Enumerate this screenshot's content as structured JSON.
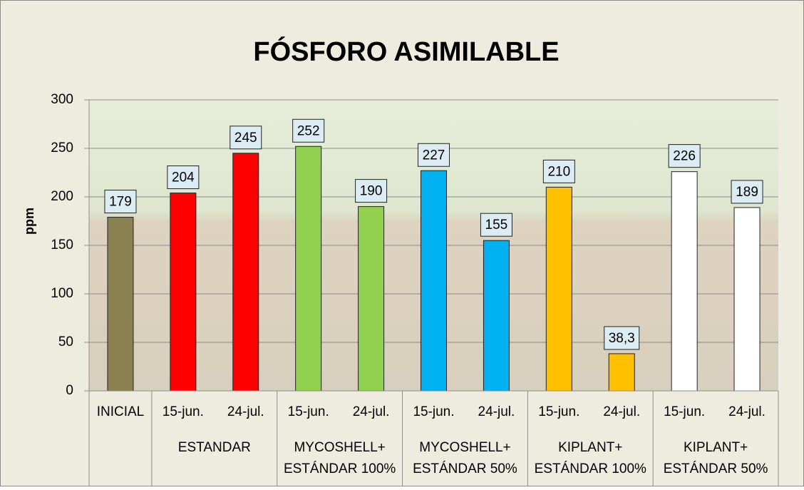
{
  "chart_data": {
    "type": "bar",
    "title": "FÓSFORO ASIMILABLE",
    "y_label": "ppm",
    "ylim": [
      0,
      300
    ],
    "yticks": [
      0,
      50,
      100,
      150,
      200,
      250,
      300
    ],
    "grid": true,
    "groups": [
      {
        "name": null,
        "categories": [
          "INICIAL"
        ],
        "values": [
          179
        ],
        "value_labels": [
          "179"
        ],
        "color": "#8c8150"
      },
      {
        "name": [
          "ESTANDAR"
        ],
        "categories": [
          "15-jun.",
          "24-jul."
        ],
        "values": [
          204,
          245
        ],
        "value_labels": [
          "204",
          "245"
        ],
        "color": "#ff0000"
      },
      {
        "name": [
          "MYCOSHELL+",
          "ESTÁNDAR 100%"
        ],
        "categories": [
          "15-jun.",
          "24-jul."
        ],
        "values": [
          252,
          190
        ],
        "value_labels": [
          "252",
          "190"
        ],
        "color": "#92d050"
      },
      {
        "name": [
          "MYCOSHELL+",
          "ESTÁNDAR 50%"
        ],
        "categories": [
          "15-jun.",
          "24-jul."
        ],
        "values": [
          227,
          155
        ],
        "value_labels": [
          "227",
          "155"
        ],
        "color": "#00b0f0"
      },
      {
        "name": [
          "KIPLANT+",
          "ESTÁNDAR 100%"
        ],
        "categories": [
          "15-jun.",
          "24-jul."
        ],
        "values": [
          210,
          38.3
        ],
        "value_labels": [
          "210",
          "38,3"
        ],
        "color": "#ffc000"
      },
      {
        "name": [
          "KIPLANT+",
          "ESTÁNDAR 50%"
        ],
        "categories": [
          "15-jun.",
          "24-jul."
        ],
        "values": [
          226,
          189
        ],
        "value_labels": [
          "226",
          "189"
        ],
        "color": "#ffffff"
      }
    ]
  }
}
